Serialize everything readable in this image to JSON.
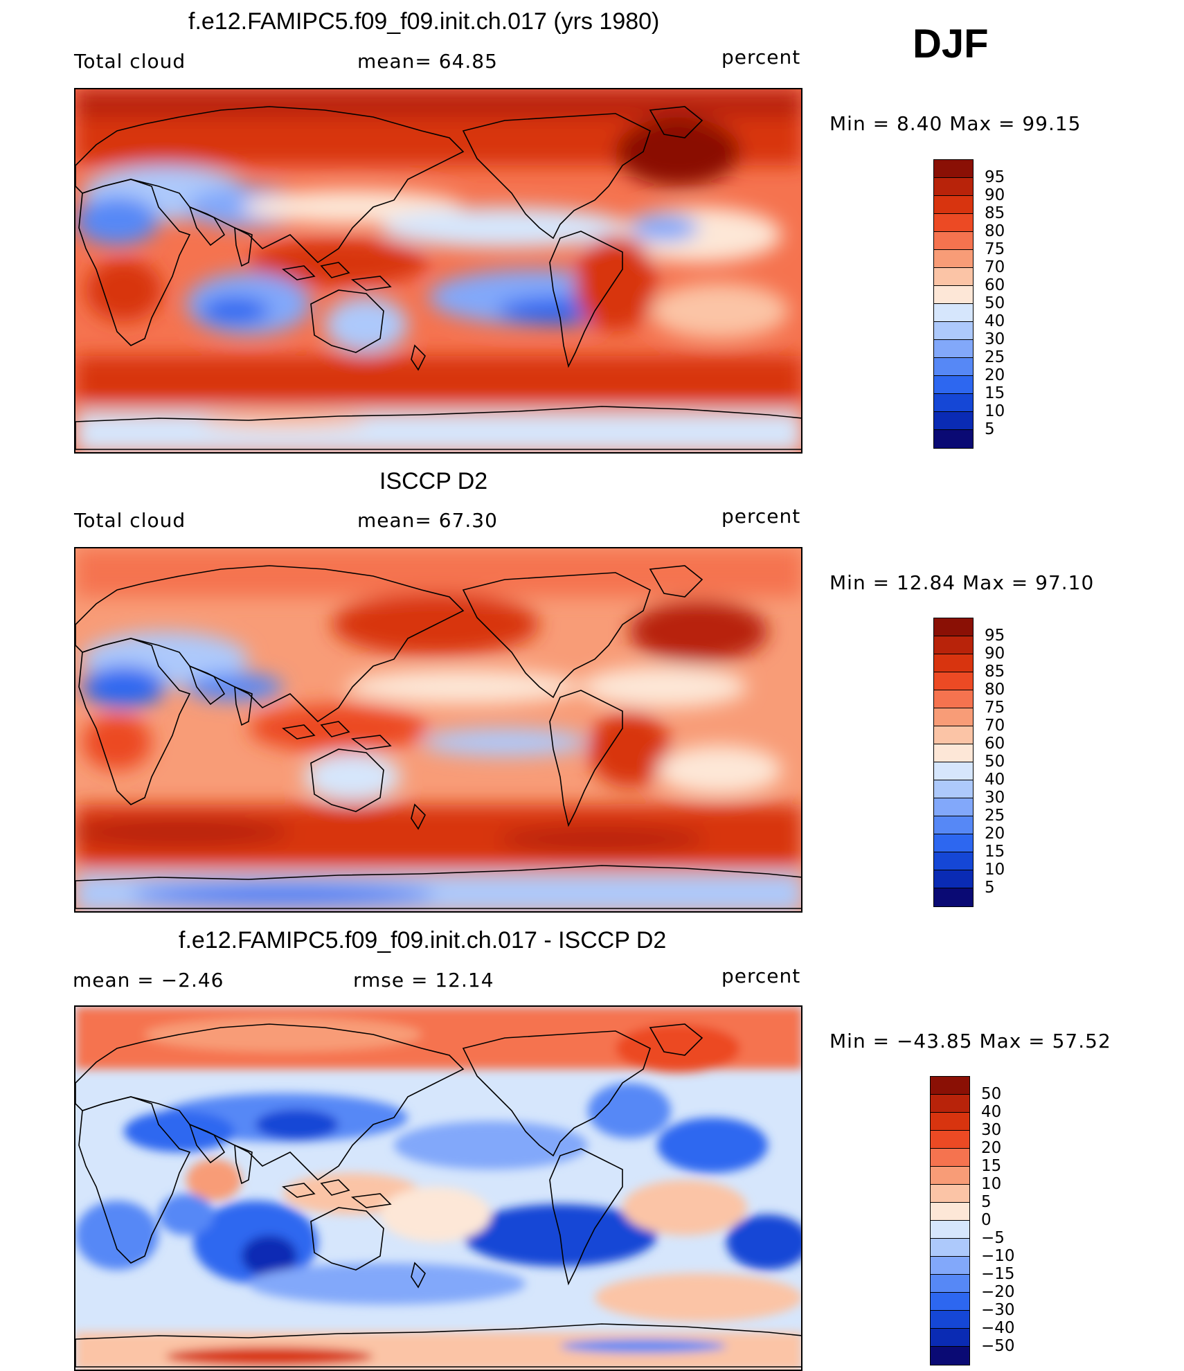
{
  "season": "DJF",
  "units": "percent",
  "colors": {
    "levels_abs": [
      "#0a0a74",
      "#0a2bb4",
      "#1547d6",
      "#2d67f0",
      "#5688f6",
      "#82a8fa",
      "#adc9fb",
      "#d6e6fc",
      "#fde7d7",
      "#fbc4a6",
      "#f89c77",
      "#f5734f",
      "#ec4a24",
      "#d8340f",
      "#b8230a",
      "#8a1005"
    ],
    "levels_diff": [
      "#0a0a74",
      "#0a2bb4",
      "#1547d6",
      "#2d67f0",
      "#5688f6",
      "#82a8fa",
      "#adc9fb",
      "#d6e6fc",
      "#fde7d7",
      "#fbc4a6",
      "#f89c77",
      "#f5734f",
      "#ec4a24",
      "#d8340f",
      "#b8230a",
      "#8a1005"
    ]
  },
  "panels": [
    {
      "title": "f.e12.FAMIPC5.f09_f09.init.ch.017 (yrs 1980)",
      "left_label": "Total cloud",
      "mid_label": "mean=   64.85",
      "right_label": "percent",
      "range_text": "Min =    8.40 Max =   99.15",
      "ticks": [
        "95",
        "90",
        "85",
        "80",
        "75",
        "70",
        "60",
        "50",
        "40",
        "30",
        "25",
        "20",
        "15",
        "10",
        "5"
      ]
    },
    {
      "title": "ISCCP D2",
      "left_label": "Total cloud",
      "mid_label": "mean=   67.30",
      "right_label": "percent",
      "range_text": "Min =   12.84 Max =   97.10",
      "ticks": [
        "95",
        "90",
        "85",
        "80",
        "75",
        "70",
        "60",
        "50",
        "40",
        "30",
        "25",
        "20",
        "15",
        "10",
        "5"
      ]
    },
    {
      "title": "f.e12.FAMIPC5.f09_f09.init.ch.017 - ISCCP D2",
      "left_label": "mean =   −2.46",
      "mid_label": "rmse =   12.14",
      "right_label": "percent",
      "range_text": "Min = −43.85 Max =   57.52",
      "ticks": [
        "50",
        "40",
        "30",
        "20",
        "15",
        "10",
        "5",
        "0",
        "−5",
        "−10",
        "−15",
        "−20",
        "−30",
        "−40",
        "−50"
      ]
    }
  ]
}
